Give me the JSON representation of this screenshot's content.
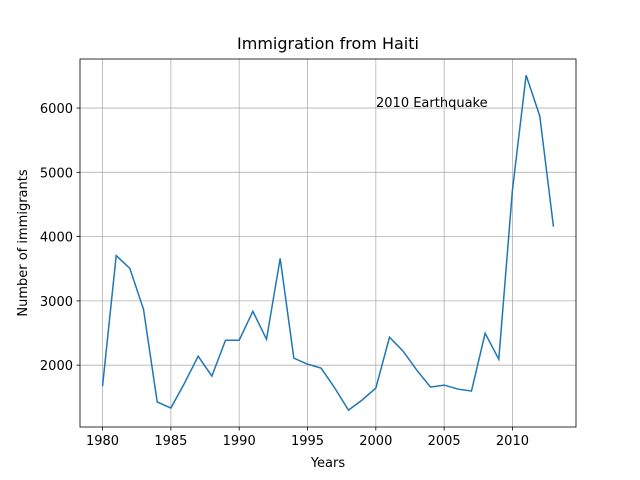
{
  "chart_data": {
    "type": "line",
    "title": "Immigration from Haiti",
    "x_label": "Years",
    "y_label": "Number of immigrants",
    "annotation": "2010 Earthquake",
    "x": [
      1980,
      1981,
      1982,
      1983,
      1984,
      1985,
      1986,
      1987,
      1988,
      1989,
      1990,
      1991,
      1992,
      1993,
      1994,
      1995,
      1996,
      1997,
      1998,
      1999,
      2000,
      2001,
      2002,
      2003,
      2004,
      2005,
      2006,
      2007,
      2008,
      2009,
      2010,
      2011,
      2012,
      2013
    ],
    "series": [
      {
        "name": "Haiti",
        "color": "#1f77b4",
        "values": [
          1674,
          3705,
          3504,
          2868,
          1427,
          1333,
          1721,
          2140,
          1830,
          2388,
          2388,
          2837,
          2403,
          3659,
          2109,
          2016,
          1953,
          1643,
          1300,
          1458,
          1643,
          2434,
          2217,
          1922,
          1659,
          1690,
          1628,
          1597,
          2496,
          2093,
          4728,
          6510,
          5875,
          4155
        ]
      }
    ],
    "xlim": [
      1978.35,
      2014.65
    ],
    "xticks": [
      1980,
      1985,
      1990,
      1995,
      2000,
      2005,
      2010
    ],
    "ylim": [
      1038,
      6763
    ],
    "yticks": [
      2000,
      3000,
      4000,
      5000,
      6000
    ],
    "grid": true
  }
}
